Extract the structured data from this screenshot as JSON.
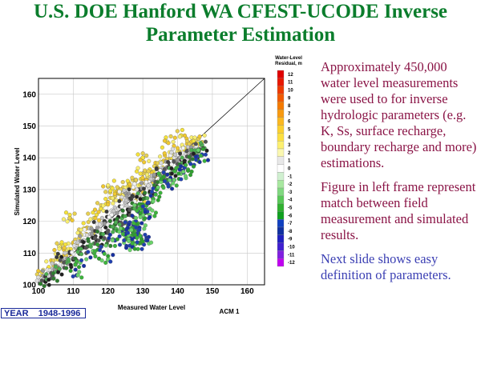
{
  "slide": {
    "title_line1": "U.S. DOE Hanford WA CFEST-UCODE Inverse",
    "title_line2": "Parameter Estimation",
    "bullets": [
      "Approximately 450,000 water level measurements were used to for inverse hydrologic parameters (e.g. K, Ss, surface recharge, boundary recharge and more) estimations.",
      "Figure in left frame represent match between field measurement and simulated results.",
      "Next slide shows easy definition of parameters."
    ],
    "year_label": "YEAR",
    "year_range": "1948-1996",
    "colors": {
      "title": "#0b7d2c",
      "bullet_primary": "#8a1446",
      "bullet_link": "#3b3fb3",
      "year_box": "#1a2a9a"
    }
  },
  "chart_data": {
    "type": "scatter",
    "xlabel": "Measured Water Level",
    "ylabel": "Simulated Water Level",
    "xlim": [
      100,
      165
    ],
    "ylim": [
      100,
      165
    ],
    "xticks": [
      100,
      110,
      120,
      130,
      140,
      150,
      160
    ],
    "yticks": [
      100,
      110,
      120,
      130,
      140,
      150,
      160
    ],
    "grid": true,
    "reference_line": "1:1",
    "annotation": "ACM 1",
    "colorbar": {
      "title_line1": "Water-Level",
      "title_line2": "Residual, m",
      "levels": [
        "12",
        "11",
        "10",
        "9",
        "8",
        "7",
        "6",
        "5",
        "4",
        "3",
        "2",
        "1",
        "0",
        "-1",
        "-2",
        "-3",
        "-4",
        "-5",
        "-6",
        "-7",
        "-8",
        "-9",
        "-10",
        "-11",
        "-12"
      ],
      "colors": [
        "#e00000",
        "#e81800",
        "#ee3a00",
        "#f25a00",
        "#f57a00",
        "#f89a10",
        "#fbb820",
        "#fcd030",
        "#fde040",
        "#fdf070",
        "#fbf8b0",
        "#e8e8e8",
        "#ffffff",
        "#d0f0d0",
        "#a8e8a0",
        "#80d880",
        "#58c858",
        "#30b030",
        "#10a020",
        "#1040c0",
        "#1030a0",
        "#2020c0",
        "#4020d0",
        "#8020e0",
        "#c000f0"
      ]
    },
    "series": [
      {
        "points": [
          [
            101,
            104
          ],
          [
            104,
            107
          ],
          [
            106,
            109
          ],
          [
            108,
            111
          ],
          [
            110,
            113
          ],
          [
            112,
            116
          ],
          [
            114,
            118
          ],
          [
            116,
            121
          ],
          [
            118,
            124
          ],
          [
            120,
            126
          ],
          [
            122,
            128
          ],
          [
            124,
            130
          ],
          [
            126,
            132
          ],
          [
            128,
            133
          ],
          [
            130,
            135
          ],
          [
            132,
            136
          ],
          [
            134,
            137
          ],
          [
            136,
            139
          ],
          [
            138,
            140
          ],
          [
            140,
            142
          ],
          [
            142,
            143
          ],
          [
            144,
            145
          ],
          [
            146,
            146
          ],
          [
            129,
            128
          ],
          [
            131,
            133
          ],
          [
            133,
            134
          ],
          [
            120,
            131
          ],
          [
            137,
            145
          ],
          [
            141,
            147
          ],
          [
            123,
            129
          ],
          [
            109,
            121
          ],
          [
            106,
            112
          ],
          [
            130,
            140
          ]
        ]
      },
      {
        "points": [
          [
            101,
            102
          ],
          [
            103,
            104
          ],
          [
            105,
            106
          ],
          [
            107,
            108
          ],
          [
            109,
            110
          ],
          [
            111,
            112
          ],
          [
            113,
            114
          ],
          [
            115,
            116
          ],
          [
            117,
            118
          ],
          [
            119,
            120
          ],
          [
            121,
            122
          ],
          [
            123,
            124
          ],
          [
            125,
            126
          ],
          [
            127,
            128
          ],
          [
            129,
            130
          ],
          [
            131,
            132
          ],
          [
            133,
            133
          ],
          [
            135,
            135
          ],
          [
            137,
            137
          ],
          [
            139,
            139
          ],
          [
            141,
            140
          ],
          [
            143,
            142
          ],
          [
            145,
            143
          ],
          [
            125,
            129
          ],
          [
            135,
            136
          ],
          [
            140,
            141
          ]
        ]
      },
      {
        "points": [
          [
            102,
            101
          ],
          [
            104,
            103
          ],
          [
            106,
            105
          ],
          [
            108,
            107
          ],
          [
            110,
            108
          ],
          [
            112,
            110
          ],
          [
            114,
            112
          ],
          [
            116,
            113
          ],
          [
            118,
            115
          ],
          [
            120,
            117
          ],
          [
            122,
            119
          ],
          [
            124,
            121
          ],
          [
            126,
            123
          ],
          [
            128,
            125
          ],
          [
            130,
            127
          ],
          [
            132,
            129
          ],
          [
            134,
            131
          ],
          [
            136,
            133
          ],
          [
            138,
            135
          ],
          [
            140,
            137
          ],
          [
            142,
            139
          ],
          [
            144,
            141
          ],
          [
            146,
            142
          ],
          [
            147,
            144
          ],
          [
            120,
            114
          ],
          [
            124,
            119
          ],
          [
            130,
            124
          ]
        ]
      },
      {
        "points": [
          [
            112,
            107
          ],
          [
            116,
            110
          ],
          [
            118,
            112
          ],
          [
            122,
            114
          ],
          [
            124,
            117
          ],
          [
            126,
            115
          ],
          [
            127,
            118
          ],
          [
            128,
            116
          ],
          [
            128,
            120
          ],
          [
            129,
            118
          ],
          [
            130,
            122
          ],
          [
            131,
            125
          ],
          [
            127,
            117
          ],
          [
            126,
            119
          ],
          [
            125,
            116
          ],
          [
            126,
            114
          ],
          [
            130,
            113
          ],
          [
            128,
            113
          ],
          [
            131,
            114
          ],
          [
            127,
            112
          ],
          [
            132,
            122
          ],
          [
            129,
            124
          ],
          [
            134,
            130
          ],
          [
            137,
            132
          ],
          [
            139,
            133
          ],
          [
            141,
            135
          ],
          [
            143,
            136
          ],
          [
            146,
            139
          ],
          [
            147,
            141
          ],
          [
            111,
            103
          ],
          [
            120,
            108
          ],
          [
            133,
            127
          ],
          [
            136,
            134
          ],
          [
            142,
            137
          ]
        ]
      }
    ]
  }
}
